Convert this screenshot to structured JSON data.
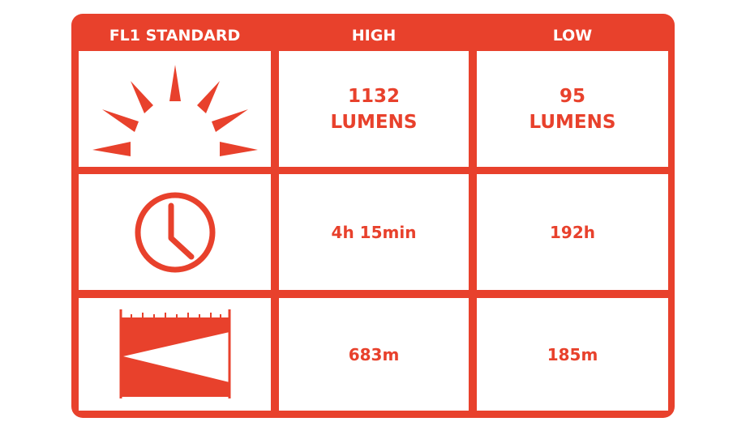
{
  "accent_color": "#e8412c",
  "headers": [
    "FL1 STANDARD",
    "HIGH",
    "LOW"
  ],
  "rows": [
    {
      "icon": "sun-rays-icon",
      "high": [
        "1132",
        "LUMENS"
      ],
      "low": [
        "95",
        "LUMENS"
      ]
    },
    {
      "icon": "clock-icon",
      "high": "4h 15min",
      "low": "192h"
    },
    {
      "icon": "beam-distance-icon",
      "high": "683m",
      "low": "185m"
    }
  ]
}
